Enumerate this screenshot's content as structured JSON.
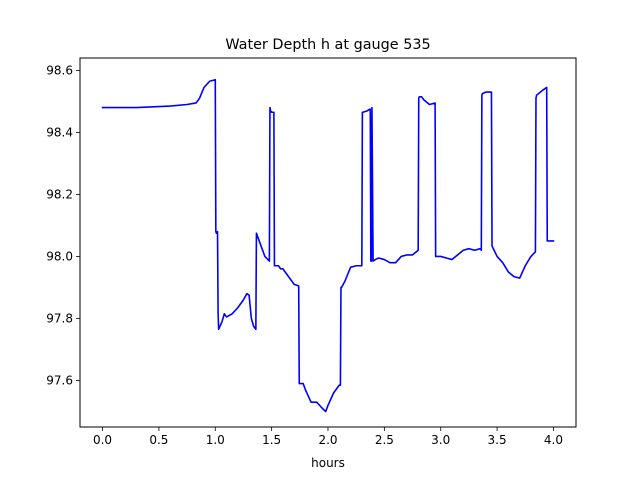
{
  "chart_data": {
    "type": "line",
    "title": "Water Depth h at gauge 535",
    "xlabel": "hours",
    "ylabel": "",
    "xlim": [
      -0.2,
      4.2
    ],
    "ylim": [
      97.45,
      98.64
    ],
    "xticks": [
      0.0,
      0.5,
      1.0,
      1.5,
      2.0,
      2.5,
      3.0,
      3.5,
      4.0
    ],
    "xtick_labels": [
      "0.0",
      "0.5",
      "1.0",
      "1.5",
      "2.0",
      "2.5",
      "3.0",
      "3.5",
      "4.0"
    ],
    "yticks": [
      97.6,
      97.8,
      98.0,
      98.2,
      98.4,
      98.6
    ],
    "ytick_labels": [
      "97.6",
      "97.8",
      "98.0",
      "98.2",
      "98.4",
      "98.6"
    ],
    "grid": false,
    "series": [
      {
        "color": "#0000ff",
        "x": [
          0.0,
          0.3,
          0.6,
          0.75,
          0.83,
          0.86,
          0.9,
          0.95,
          1.0,
          1.005,
          1.01,
          1.02,
          1.025,
          1.03,
          1.06,
          1.08,
          1.1,
          1.15,
          1.2,
          1.25,
          1.28,
          1.3,
          1.32,
          1.34,
          1.36,
          1.365,
          1.37,
          1.4,
          1.44,
          1.48,
          1.485,
          1.49,
          1.5,
          1.52,
          1.525,
          1.53,
          1.56,
          1.58,
          1.6,
          1.65,
          1.7,
          1.74,
          1.745,
          1.75,
          1.78,
          1.8,
          1.85,
          1.9,
          1.95,
          1.98,
          2.0,
          2.05,
          2.1,
          2.11,
          2.115,
          2.12,
          2.15,
          2.2,
          2.25,
          2.3,
          2.305,
          2.31,
          2.35,
          2.37,
          2.375,
          2.38,
          2.385,
          2.39,
          2.4,
          2.42,
          2.45,
          2.5,
          2.55,
          2.6,
          2.65,
          2.7,
          2.75,
          2.8,
          2.805,
          2.81,
          2.83,
          2.85,
          2.9,
          2.95,
          2.955,
          2.96,
          3.0,
          3.05,
          3.1,
          3.15,
          3.2,
          3.25,
          3.3,
          3.35,
          3.36,
          3.365,
          3.37,
          3.4,
          3.45,
          3.455,
          3.46,
          3.5,
          3.55,
          3.6,
          3.65,
          3.7,
          3.75,
          3.8,
          3.84,
          3.845,
          3.85,
          3.9,
          3.94,
          3.945,
          3.95,
          3.97,
          4.0
        ],
        "y": [
          98.48,
          98.48,
          98.485,
          98.49,
          98.495,
          98.51,
          98.545,
          98.565,
          98.57,
          98.08,
          98.075,
          98.08,
          97.82,
          97.765,
          97.79,
          97.815,
          97.805,
          97.815,
          97.835,
          97.86,
          97.88,
          97.875,
          97.8,
          97.775,
          97.765,
          98.075,
          98.07,
          98.04,
          98.0,
          97.985,
          98.48,
          98.47,
          98.465,
          98.465,
          97.97,
          97.97,
          97.97,
          97.96,
          97.96,
          97.935,
          97.91,
          97.905,
          97.59,
          97.59,
          97.59,
          97.57,
          97.53,
          97.53,
          97.51,
          97.5,
          97.52,
          97.56,
          97.585,
          97.585,
          97.9,
          97.9,
          97.92,
          97.965,
          97.97,
          97.97,
          98.465,
          98.465,
          98.47,
          98.475,
          98.475,
          97.985,
          97.985,
          98.48,
          97.985,
          97.99,
          97.995,
          97.99,
          97.98,
          97.98,
          98.0,
          98.005,
          98.005,
          98.02,
          98.51,
          98.515,
          98.515,
          98.505,
          98.49,
          98.495,
          98.0,
          98.0,
          98.0,
          97.995,
          97.99,
          98.005,
          98.02,
          98.025,
          98.02,
          98.025,
          98.02,
          98.52,
          98.525,
          98.53,
          98.53,
          98.035,
          98.03,
          98.0,
          97.98,
          97.95,
          97.935,
          97.93,
          97.97,
          98.0,
          98.015,
          98.51,
          98.52,
          98.535,
          98.545,
          98.05,
          98.05,
          98.05,
          98.05
        ]
      }
    ]
  }
}
